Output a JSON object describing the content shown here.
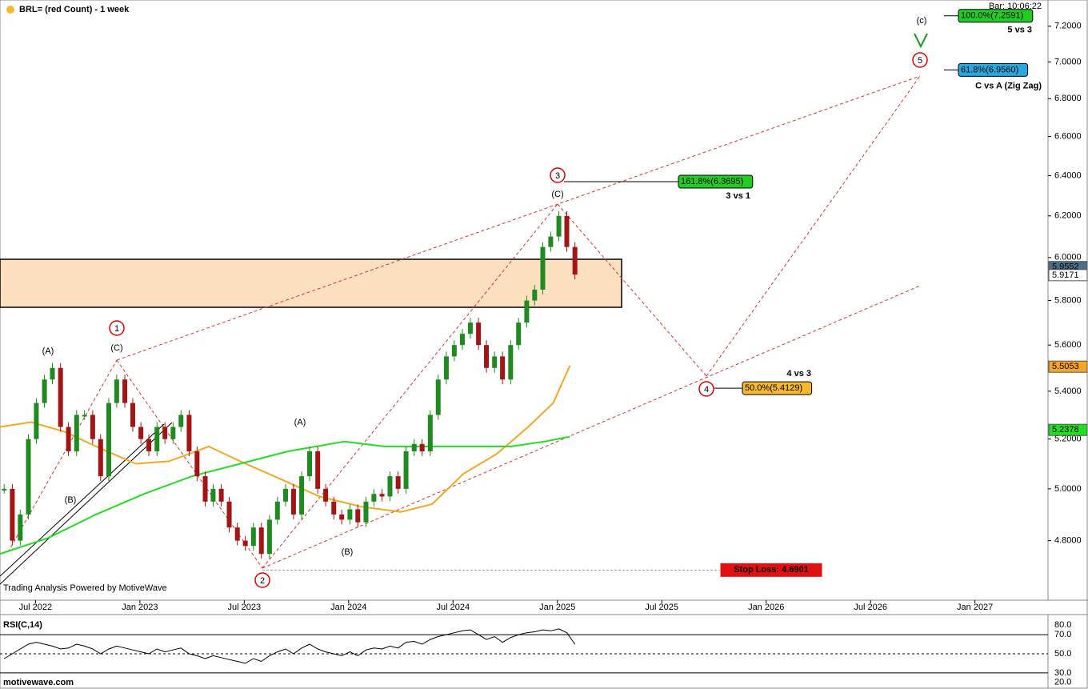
{
  "chart_data": [
    {
      "type": "candlestick",
      "title": "BRL= (red Count) - 1 week",
      "bar_time": "Bar: 10:06:22",
      "watermark": "Trading Analysis Powered by MotiveWave",
      "log_scale": true,
      "xlim": [
        2022.33,
        2027.35
      ],
      "xticks": [
        {
          "value": 2022.5,
          "label": "Jul 2022"
        },
        {
          "value": 2023.0,
          "label": "Jan 2023"
        },
        {
          "value": 2023.5,
          "label": "Jul 2023"
        },
        {
          "value": 2024.0,
          "label": "Jan 2024"
        },
        {
          "value": 2024.5,
          "label": "Jul 2024"
        },
        {
          "value": 2025.0,
          "label": "Jan 2025"
        },
        {
          "value": 2025.5,
          "label": "Jul 2025"
        },
        {
          "value": 2026.0,
          "label": "Jan 2026"
        },
        {
          "value": 2026.5,
          "label": "Jul 2026"
        },
        {
          "value": 2027.0,
          "label": "Jan 2027"
        }
      ],
      "ylim": [
        4.58,
        7.35
      ],
      "yticks": [
        {
          "value": 4.8,
          "label": "4.8000"
        },
        {
          "value": 5.0,
          "label": "5.0000"
        },
        {
          "value": 5.2,
          "label": "5.2000"
        },
        {
          "value": 5.4,
          "label": "5.4000"
        },
        {
          "value": 5.6,
          "label": "5.6000"
        },
        {
          "value": 5.8,
          "label": "5.8000"
        },
        {
          "value": 6.0,
          "label": "6.0000"
        },
        {
          "value": 6.2,
          "label": "6.2000"
        },
        {
          "value": 6.4,
          "label": "6.4000"
        },
        {
          "value": 6.6,
          "label": "6.6000"
        },
        {
          "value": 6.8,
          "label": "6.8000"
        },
        {
          "value": 7.0,
          "label": "7.0000"
        },
        {
          "value": 7.2,
          "label": "7.2000"
        }
      ],
      "up_color": "#1f8a1f",
      "down_color": "#a31515",
      "x": [
        2022.35,
        2022.389,
        2022.427,
        2022.466,
        2022.504,
        2022.543,
        2022.581,
        2022.62,
        2022.658,
        2022.697,
        2022.735,
        2022.774,
        2022.812,
        2022.851,
        2022.889,
        2022.928,
        2022.966,
        2023.005,
        2023.043,
        2023.082,
        2023.12,
        2023.159,
        2023.197,
        2023.236,
        2023.274,
        2023.313,
        2023.351,
        2023.39,
        2023.428,
        2023.467,
        2023.505,
        2023.544,
        2023.582,
        2023.621,
        2023.659,
        2023.698,
        2023.736,
        2023.775,
        2023.813,
        2023.852,
        2023.89,
        2023.929,
        2023.967,
        2024.006,
        2024.044,
        2024.083,
        2024.121,
        2024.16,
        2024.198,
        2024.237,
        2024.275,
        2024.314,
        2024.352,
        2024.391,
        2024.429,
        2024.468,
        2024.506,
        2024.545,
        2024.583,
        2024.622,
        2024.66,
        2024.699,
        2024.737,
        2024.776,
        2024.814,
        2024.853,
        2024.891,
        2024.93,
        2024.968,
        2025.007,
        2025.045,
        2025.084
      ],
      "values": [
        5.0,
        4.8,
        4.9,
        5.2,
        5.35,
        5.45,
        5.5,
        5.25,
        5.15,
        5.3,
        5.3,
        5.2,
        5.05,
        5.35,
        5.45,
        5.35,
        5.25,
        5.2,
        5.15,
        5.25,
        5.2,
        5.25,
        5.3,
        5.15,
        5.05,
        4.95,
        5.0,
        4.95,
        4.85,
        4.8,
        4.78,
        4.85,
        4.75,
        4.88,
        4.95,
        5.0,
        4.9,
        5.05,
        5.15,
        5.0,
        4.95,
        4.9,
        4.88,
        4.92,
        4.87,
        4.95,
        4.98,
        4.97,
        5.05,
        5.0,
        5.15,
        5.18,
        5.15,
        5.3,
        5.45,
        5.55,
        5.6,
        5.65,
        5.7,
        5.6,
        5.5,
        5.55,
        5.45,
        5.6,
        5.7,
        5.8,
        5.85,
        6.05,
        6.1,
        6.2,
        6.05,
        5.92
      ],
      "series": [
        {
          "color": "#f5a623",
          "x": [
            2022.33,
            2022.48,
            2022.64,
            2022.79,
            2022.98,
            2023.14,
            2023.33,
            2023.48,
            2023.67,
            2023.86,
            2024.06,
            2024.25,
            2024.4,
            2024.55,
            2024.71,
            2024.86,
            2024.98,
            2025.06
          ],
          "values": [
            5.25,
            5.27,
            5.23,
            5.17,
            5.1,
            5.11,
            5.17,
            5.11,
            5.04,
            4.97,
            4.93,
            4.91,
            4.94,
            5.06,
            5.14,
            5.25,
            5.35,
            5.51
          ]
        },
        {
          "color": "#22dd22",
          "x": [
            2022.33,
            2022.56,
            2022.79,
            2023.02,
            2023.25,
            2023.48,
            2023.71,
            2023.98,
            2024.17,
            2024.4,
            2024.63,
            2024.78,
            2024.94,
            2025.06
          ],
          "values": [
            4.75,
            4.81,
            4.9,
            4.98,
            5.05,
            5.1,
            5.15,
            5.19,
            5.17,
            5.17,
            5.17,
            5.17,
            5.19,
            5.21
          ]
        }
      ],
      "price_tags": [
        {
          "value": 5.9552,
          "color": "#4a6f8a",
          "text_color": "#ffffff"
        },
        {
          "value": 5.9171,
          "color": "#ffffff",
          "text_color": "#000000"
        },
        {
          "value": 5.5053,
          "color": "#f5a623",
          "text_color": "#000000"
        },
        {
          "value": 5.2378,
          "color": "#22dd22",
          "text_color": "#000000"
        }
      ],
      "fib_levels": [
        {
          "value": 6.3695,
          "label": "161.8%(6.3695)",
          "note": "3 vs 1",
          "color": "#22cc22"
        },
        {
          "value": 7.2591,
          "label": "100.0%(7.2591)",
          "note": "5 vs 3",
          "color": "#22cc22"
        },
        {
          "value": 6.956,
          "label": "61.8%(6.9560)",
          "note": "C vs A (Zig Zag)",
          "color": "#29a8e0"
        },
        {
          "value": 5.4129,
          "label": "50.0%(5.4129)",
          "note": "4 vs 3",
          "color": "#f5b82e"
        }
      ],
      "stop_loss": {
        "value": 4.6901,
        "label": "Stop Loss: 4.6901"
      },
      "wave_labels": [
        {
          "text": "(A)",
          "color": "#e00000"
        },
        {
          "text": "(B)",
          "color": "#e00000"
        },
        {
          "text": "1",
          "color": "#e00000"
        },
        {
          "text": "(C)",
          "color": "#e00000"
        },
        {
          "text": "2",
          "color": "#e00000"
        },
        {
          "text": "(A)",
          "color": "#1a7a1a"
        },
        {
          "text": "(B)",
          "color": "#1a7a1a"
        },
        {
          "text": "3",
          "color": "#e00000"
        },
        {
          "text": "(C)",
          "color": "#1a7a1a"
        },
        {
          "text": "4",
          "color": "#e00000"
        },
        {
          "text": "5",
          "color": "#e00000"
        },
        {
          "text": "(c)",
          "color": "#e00000"
        }
      ]
    },
    {
      "type": "line",
      "title": "RSI(C,14)",
      "site": "motivewave.com",
      "ylim": [
        14,
        91
      ],
      "yticks": [
        {
          "value": 20,
          "label": "20.0"
        },
        {
          "value": 30,
          "label": "30.0"
        },
        {
          "value": 50,
          "label": "50.0"
        },
        {
          "value": 70,
          "label": "70.0"
        },
        {
          "value": 80,
          "label": "80.0"
        }
      ],
      "color": "#000000",
      "values": [
        45,
        50,
        55,
        60,
        62,
        60,
        58,
        55,
        56,
        60,
        58,
        55,
        50,
        55,
        58,
        56,
        54,
        52,
        50,
        55,
        52,
        54,
        56,
        50,
        48,
        45,
        48,
        46,
        44,
        42,
        40,
        45,
        42,
        48,
        52,
        55,
        50,
        56,
        60,
        55,
        52,
        50,
        48,
        52,
        48,
        54,
        56,
        55,
        58,
        56,
        62,
        63,
        60,
        65,
        68,
        70,
        72,
        74,
        75,
        70,
        65,
        68,
        62,
        67,
        70,
        72,
        73,
        75,
        74,
        76,
        72,
        60
      ]
    }
  ]
}
